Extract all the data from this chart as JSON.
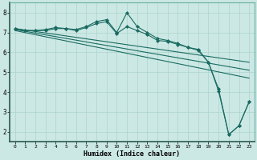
{
  "xlabel": "Humidex (Indice chaleur)",
  "background_color": "#cce8e4",
  "grid_color": "#aad4cc",
  "line_color": "#1a6b62",
  "xlim": [
    -0.5,
    23.5
  ],
  "ylim": [
    1.5,
    8.5
  ],
  "xticks": [
    0,
    1,
    2,
    3,
    4,
    5,
    6,
    7,
    8,
    9,
    10,
    11,
    12,
    13,
    14,
    15,
    16,
    17,
    18,
    19,
    20,
    21,
    22,
    23
  ],
  "yticks": [
    2,
    3,
    4,
    5,
    6,
    7,
    8
  ],
  "lines": [
    {
      "x": [
        0,
        1,
        2,
        3,
        4,
        5,
        6,
        7,
        8,
        9,
        10,
        11,
        12,
        13,
        14,
        15,
        16,
        17,
        18,
        19,
        20,
        21,
        22,
        23
      ],
      "y": [
        7.2,
        7.1,
        7.1,
        7.15,
        7.25,
        7.2,
        7.15,
        7.3,
        7.55,
        7.65,
        7.0,
        8.0,
        7.3,
        7.0,
        6.7,
        6.6,
        6.45,
        6.25,
        6.15,
        5.5,
        4.15,
        1.85,
        2.3,
        3.5
      ],
      "marker": "D",
      "marker_size": 2.0,
      "linewidth": 0.8
    },
    {
      "x": [
        0,
        1,
        2,
        3,
        4,
        5,
        6,
        7,
        8,
        9,
        10,
        11,
        12,
        13,
        14,
        15,
        16,
        17,
        18,
        19,
        20,
        21,
        22,
        23
      ],
      "y": [
        7.2,
        7.1,
        7.1,
        7.1,
        7.2,
        7.2,
        7.1,
        7.25,
        7.45,
        7.55,
        6.95,
        7.3,
        7.1,
        6.9,
        6.6,
        6.55,
        6.4,
        6.25,
        6.1,
        5.5,
        4.05,
        1.85,
        2.3,
        3.5
      ],
      "marker": "D",
      "marker_size": 2.0,
      "linewidth": 0.8
    },
    {
      "x": [
        0,
        23
      ],
      "y": [
        7.2,
        5.5
      ],
      "marker": null,
      "linewidth": 0.8
    },
    {
      "x": [
        0,
        23
      ],
      "y": [
        7.15,
        5.1
      ],
      "marker": null,
      "linewidth": 0.8
    },
    {
      "x": [
        0,
        23
      ],
      "y": [
        7.1,
        4.7
      ],
      "marker": null,
      "linewidth": 0.8
    }
  ]
}
